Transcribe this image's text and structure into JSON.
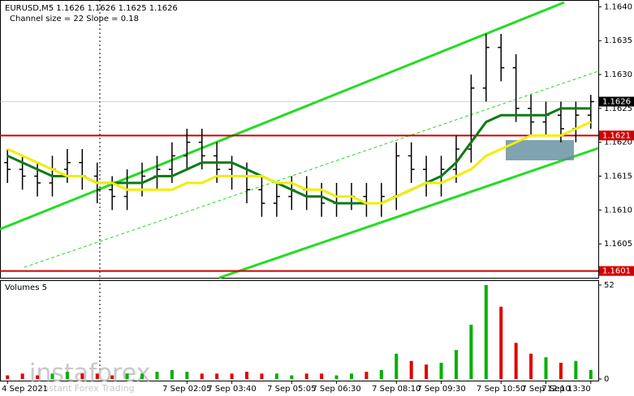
{
  "chart_data": {
    "type": "ohlc",
    "title": "EURUSD,M5  1.1626 1.1626 1.1625 1.1626",
    "subtitle": "Channel size = 22 Slope = 0.18",
    "categories": [
      "4 Sep 2021",
      null,
      null,
      null,
      null,
      null,
      null,
      null,
      null,
      null,
      null,
      null,
      "7 Sep 02:05",
      null,
      null,
      "7 Sep 03:40",
      null,
      null,
      null,
      "7 Sep 05:05",
      null,
      null,
      "7 Sep 06:30",
      null,
      null,
      null,
      "7 Sep 08:10",
      null,
      null,
      "7 Sep 09:30",
      null,
      null,
      null,
      "7 Sep 10:50",
      null,
      null,
      "7 Sep 12:10",
      null,
      null,
      "7 Sep 13:30"
    ],
    "open": [
      1.1617,
      1.1616,
      1.1615,
      1.1614,
      1.1616,
      1.1617,
      1.1615,
      1.1613,
      1.1612,
      1.1614,
      1.1615,
      1.1616,
      1.1618,
      1.162,
      1.1618,
      1.1616,
      1.1615,
      1.1613,
      1.1611,
      1.1612,
      1.1613,
      1.1612,
      1.1611,
      1.1612,
      1.1612,
      1.1611,
      1.1612,
      1.1618,
      1.1616,
      1.1614,
      1.1616,
      1.1619,
      1.1628,
      1.1634,
      1.1631,
      1.1625,
      1.1623,
      1.1624,
      1.1622,
      1.1624
    ],
    "high": [
      1.1619,
      1.1618,
      1.1617,
      1.1618,
      1.1619,
      1.1619,
      1.1617,
      1.1615,
      1.1616,
      1.1617,
      1.1618,
      1.162,
      1.1622,
      1.1622,
      1.162,
      1.1618,
      1.1617,
      1.1615,
      1.1614,
      1.1615,
      1.1615,
      1.1614,
      1.1614,
      1.1614,
      1.1614,
      1.1614,
      1.162,
      1.162,
      1.1618,
      1.1618,
      1.1621,
      1.163,
      1.1636,
      1.1636,
      1.1633,
      1.1627,
      1.1626,
      1.1626,
      1.1626,
      1.1627
    ],
    "low": [
      1.1614,
      1.1613,
      1.1612,
      1.1612,
      1.1614,
      1.1613,
      1.1611,
      1.161,
      1.161,
      1.1612,
      1.1613,
      1.1614,
      1.1616,
      1.1616,
      1.1614,
      1.1613,
      1.1611,
      1.1609,
      1.1609,
      1.161,
      1.161,
      1.1609,
      1.1609,
      1.161,
      1.1609,
      1.1609,
      1.161,
      1.1614,
      1.1612,
      1.1612,
      1.1614,
      1.1617,
      1.1626,
      1.1629,
      1.1623,
      1.1621,
      1.1621,
      1.162,
      1.162,
      1.1622
    ],
    "close": [
      1.1616,
      1.1615,
      1.1614,
      1.1616,
      1.1617,
      1.1615,
      1.1613,
      1.1612,
      1.1614,
      1.1615,
      1.1616,
      1.1618,
      1.162,
      1.1618,
      1.1616,
      1.1615,
      1.1613,
      1.1611,
      1.1612,
      1.1613,
      1.1612,
      1.1611,
      1.1612,
      1.1612,
      1.1611,
      1.1612,
      1.1618,
      1.1616,
      1.1614,
      1.1616,
      1.1619,
      1.1628,
      1.1634,
      1.1631,
      1.1625,
      1.1623,
      1.1624,
      1.1622,
      1.1624,
      1.1626
    ],
    "bar_color": "#000000",
    "lines": [
      {
        "color": "#0e7a16",
        "values": [
          1.1618,
          1.1617,
          1.1616,
          1.1615,
          1.1615,
          1.1615,
          1.1614,
          1.1614,
          1.1614,
          1.1614,
          1.1615,
          1.1615,
          1.1616,
          1.1617,
          1.1617,
          1.1617,
          1.1616,
          1.1615,
          1.1614,
          1.1613,
          1.1612,
          1.1612,
          1.1611,
          1.1611,
          1.1611,
          1.1611,
          1.1612,
          1.1613,
          1.1614,
          1.1615,
          1.1617,
          1.162,
          1.1623,
          1.1624,
          1.1624,
          1.1624,
          1.1624,
          1.1625,
          1.1625,
          1.1625
        ]
      },
      {
        "color": "#f2ee00",
        "values": [
          1.1619,
          1.1618,
          1.1617,
          1.1616,
          1.1615,
          1.1615,
          1.1614,
          1.1614,
          1.1613,
          1.1613,
          1.1613,
          1.1613,
          1.1614,
          1.1614,
          1.1615,
          1.1615,
          1.1615,
          1.1615,
          1.1614,
          1.1614,
          1.1613,
          1.1613,
          1.1612,
          1.1612,
          1.1611,
          1.1611,
          1.1612,
          1.1613,
          1.1614,
          1.1614,
          1.1615,
          1.1616,
          1.1618,
          1.1619,
          1.162,
          1.1621,
          1.1621,
          1.1621,
          1.1622,
          1.1623
        ]
      }
    ],
    "ylim": [
      1.16,
      1.1641
    ],
    "yticks": [
      {
        "value": 1.164,
        "label": "1.1640"
      },
      1.1635,
      {
        "value": 1.163,
        "label": "1.1630"
      },
      1.1625,
      {
        "value": 1.162,
        "label": "1.1620"
      },
      1.1615,
      {
        "value": 1.161,
        "label": "1.1610"
      },
      1.1605
    ],
    "levels": [
      1.1621,
      1.1601
    ],
    "level_color": "#d00000",
    "last_price": 1.1626,
    "volume": {
      "title": "Volumes 5",
      "values": [
        2,
        3,
        2,
        3,
        4,
        3,
        3,
        2,
        3,
        3,
        4,
        5,
        4,
        3,
        3,
        3,
        4,
        3,
        3,
        2,
        3,
        3,
        2,
        3,
        4,
        5,
        14,
        10,
        8,
        9,
        16,
        30,
        52,
        40,
        20,
        14,
        12,
        9,
        10,
        5
      ],
      "ylim": [
        0,
        52
      ],
      "yticks": [
        0,
        52
      ],
      "up_color": "#00b000",
      "down_color": "#e00000"
    }
  },
  "watermark": {
    "brand": "instaforex",
    "tagline": "Instant Forex Trading"
  }
}
